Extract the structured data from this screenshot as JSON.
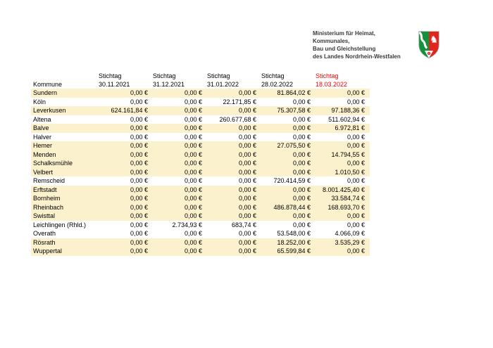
{
  "ministry": {
    "name_lines": [
      "Ministerium für Heimat, Kommunales,",
      "Bau und Gleichstellung",
      "des Landes Nordrhein-Westfalen"
    ],
    "logo": {
      "name": "nrw-coat-of-arms",
      "green": "#14913c",
      "red": "#e2241e",
      "white": "#ffffff",
      "border": "#b2b2b2"
    }
  },
  "table": {
    "row_label_header": "Kommune",
    "columns": [
      {
        "label": "Stichtag",
        "date": "30.11.2021",
        "highlighted": false
      },
      {
        "label": "Stichtag",
        "date": "31.12.2021",
        "highlighted": false
      },
      {
        "label": "Stichtag",
        "date": "31.01.2022",
        "highlighted": false
      },
      {
        "label": "Stichtag",
        "date": "28.02.2022",
        "highlighted": false
      },
      {
        "label": "Stichtag",
        "date": "18.03.2022",
        "highlighted": true
      }
    ],
    "highlight_color": "#ff0000",
    "stripe_color": "#fcf1cd",
    "rows": [
      {
        "kommune": "Sundern",
        "striped": true,
        "values": [
          "0,00 €",
          "0,00 €",
          "0,00 €",
          "81.864,02 €",
          "0,00 €"
        ]
      },
      {
        "kommune": "Köln",
        "striped": false,
        "values": [
          "0,00 €",
          "0,00 €",
          "22.171,85 €",
          "0,00 €",
          "0,00 €"
        ]
      },
      {
        "kommune": "Leverkusen",
        "striped": true,
        "values": [
          "624.161,84 €",
          "0,00 €",
          "0,00 €",
          "75.307,58 €",
          "97.188,36 €"
        ]
      },
      {
        "kommune": "Altena",
        "striped": false,
        "values": [
          "0,00 €",
          "0,00 €",
          "260.677,68 €",
          "0,00 €",
          "511.602,94 €"
        ]
      },
      {
        "kommune": "Balve",
        "striped": true,
        "values": [
          "0,00 €",
          "0,00 €",
          "0,00 €",
          "0,00 €",
          "6.972,81 €"
        ]
      },
      {
        "kommune": "Halver",
        "striped": false,
        "values": [
          "0,00 €",
          "0,00 €",
          "0,00 €",
          "0,00 €",
          "0,00 €"
        ]
      },
      {
        "kommune": "Hemer",
        "striped": true,
        "values": [
          "0,00 €",
          "0,00 €",
          "0,00 €",
          "27.075,50 €",
          "0,00 €"
        ]
      },
      {
        "kommune": "Menden",
        "striped": true,
        "values": [
          "0,00 €",
          "0,00 €",
          "0,00 €",
          "0,00 €",
          "14.794,55 €"
        ]
      },
      {
        "kommune": "Schalksmühle",
        "striped": true,
        "values": [
          "0,00 €",
          "0,00 €",
          "0,00 €",
          "0,00 €",
          "0,00 €"
        ]
      },
      {
        "kommune": "Velbert",
        "striped": true,
        "values": [
          "0,00 €",
          "0,00 €",
          "0,00 €",
          "0,00 €",
          "1.010,50 €"
        ]
      },
      {
        "kommune": "Remscheid",
        "striped": false,
        "values": [
          "0,00 €",
          "0,00 €",
          "0,00 €",
          "720.414,59 €",
          "0,00 €"
        ]
      },
      {
        "kommune": "Erftstadt",
        "striped": true,
        "values": [
          "0,00 €",
          "0,00 €",
          "0,00 €",
          "0,00 €",
          "8.001.425,40 €"
        ]
      },
      {
        "kommune": "Bornheim",
        "striped": true,
        "values": [
          "0,00 €",
          "0,00 €",
          "0,00 €",
          "0,00 €",
          "33.584,74 €"
        ]
      },
      {
        "kommune": "Rheinbach",
        "striped": true,
        "values": [
          "0,00 €",
          "0,00 €",
          "0,00 €",
          "486.878,44 €",
          "168.693,70 €"
        ]
      },
      {
        "kommune": "Swisttal",
        "striped": true,
        "values": [
          "0,00 €",
          "0,00 €",
          "0,00 €",
          "0,00 €",
          "0,00 €"
        ]
      },
      {
        "kommune": "Leichlingen (Rhld.)",
        "striped": false,
        "values": [
          "0,00 €",
          "2.734,93 €",
          "683,74 €",
          "0,00 €",
          "0,00 €"
        ]
      },
      {
        "kommune": "Overath",
        "striped": false,
        "values": [
          "0,00 €",
          "0,00 €",
          "0,00 €",
          "53.548,00 €",
          "4.066,09 €"
        ]
      },
      {
        "kommune": "Rösrath",
        "striped": true,
        "values": [
          "0,00 €",
          "0,00 €",
          "0,00 €",
          "18.252,00 €",
          "3.535,29 €"
        ]
      },
      {
        "kommune": "Wuppertal",
        "striped": true,
        "values": [
          "0,00 €",
          "0,00 €",
          "0,00 €",
          "65.599,84 €",
          "0,00 €"
        ]
      }
    ]
  }
}
